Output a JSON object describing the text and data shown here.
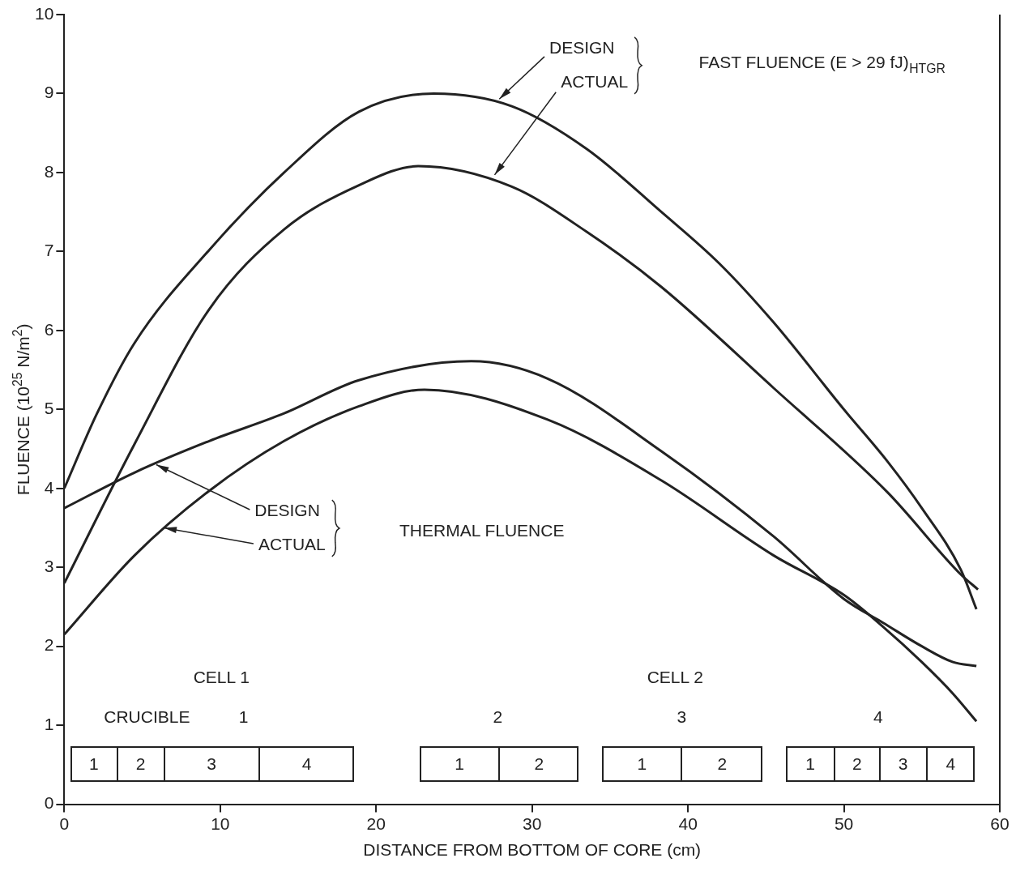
{
  "chart_data": {
    "type": "line",
    "xlabel": "DISTANCE FROM BOTTOM OF CORE (cm)",
    "ylabel": "FLUENCE (10$^{25}$ N/m$^{2}$)",
    "xlim": [
      0,
      60
    ],
    "xticks": [
      0,
      10,
      20,
      30,
      40,
      50,
      60
    ],
    "ylim": [
      0,
      10
    ],
    "yticks": [
      0,
      1,
      2,
      3,
      4,
      5,
      6,
      7,
      8,
      9,
      10
    ],
    "grid": false,
    "legend": false,
    "marker": "none",
    "line_style": "solid",
    "series": [
      {
        "color": "#222222",
        "x": [
          0,
          2.1,
          4.5,
          9.3,
          14.1,
          18.9,
          23.7,
          28.7,
          33.5,
          38.3,
          42,
          45.5,
          50,
          52.8,
          55,
          57.5,
          58.5
        ],
        "values": [
          4.0,
          4.95,
          5.84,
          7.02,
          8.0,
          8.77,
          9.0,
          8.84,
          8.3,
          7.5,
          6.85,
          6.1,
          5.0,
          4.34,
          3.75,
          2.97,
          2.47
        ]
      },
      {
        "color": "#222222",
        "x": [
          0,
          4.5,
          9.3,
          14.1,
          18.9,
          22.7,
          28.7,
          33.5,
          38.3,
          45.5,
          52.8,
          57.5,
          58.6
        ],
        "values": [
          2.8,
          4.56,
          6.27,
          7.28,
          7.84,
          8.08,
          7.82,
          7.25,
          6.55,
          5.27,
          3.95,
          2.91,
          2.72
        ]
      },
      {
        "color": "#222222",
        "x": [
          0,
          4.5,
          9.3,
          14.1,
          18.9,
          26.1,
          31,
          38.3,
          45.5,
          50,
          52.5,
          55,
          57,
          58.5
        ],
        "values": [
          3.75,
          4.2,
          4.6,
          4.95,
          5.37,
          5.61,
          5.39,
          4.47,
          3.39,
          2.6,
          2.3,
          2.0,
          1.8,
          1.75
        ]
      },
      {
        "color": "#222222",
        "x": [
          0,
          4.5,
          9.3,
          14.1,
          18.9,
          23.1,
          31,
          38.3,
          45.5,
          50,
          52.5,
          55,
          57,
          58.5
        ],
        "values": [
          2.15,
          3.15,
          3.97,
          4.6,
          5.04,
          5.25,
          4.87,
          4.1,
          3.15,
          2.65,
          2.25,
          1.8,
          1.4,
          1.05
        ]
      }
    ],
    "annotations": [
      {
        "text": "DESIGN",
        "x": 27.9,
        "y": 8.93
      },
      {
        "text": "ACTUAL",
        "x": 27.6,
        "y": 7.97
      },
      "FAST FLUENCE (E > 29 fJ)$_{HTGR}$",
      {
        "text": "DESIGN",
        "x": 5.9,
        "y": 4.3
      },
      {
        "text": "ACTUAL",
        "x": 6.4,
        "y": 3.5
      },
      "THERMAL FLUENCE",
      "CELL 1",
      "CELL 2",
      "CRUCIBLE",
      "1",
      "2",
      "3",
      "4",
      "1",
      "2",
      "3",
      "4",
      "1",
      "2",
      "1",
      "2",
      "1",
      "2",
      "3",
      "4"
    ]
  }
}
